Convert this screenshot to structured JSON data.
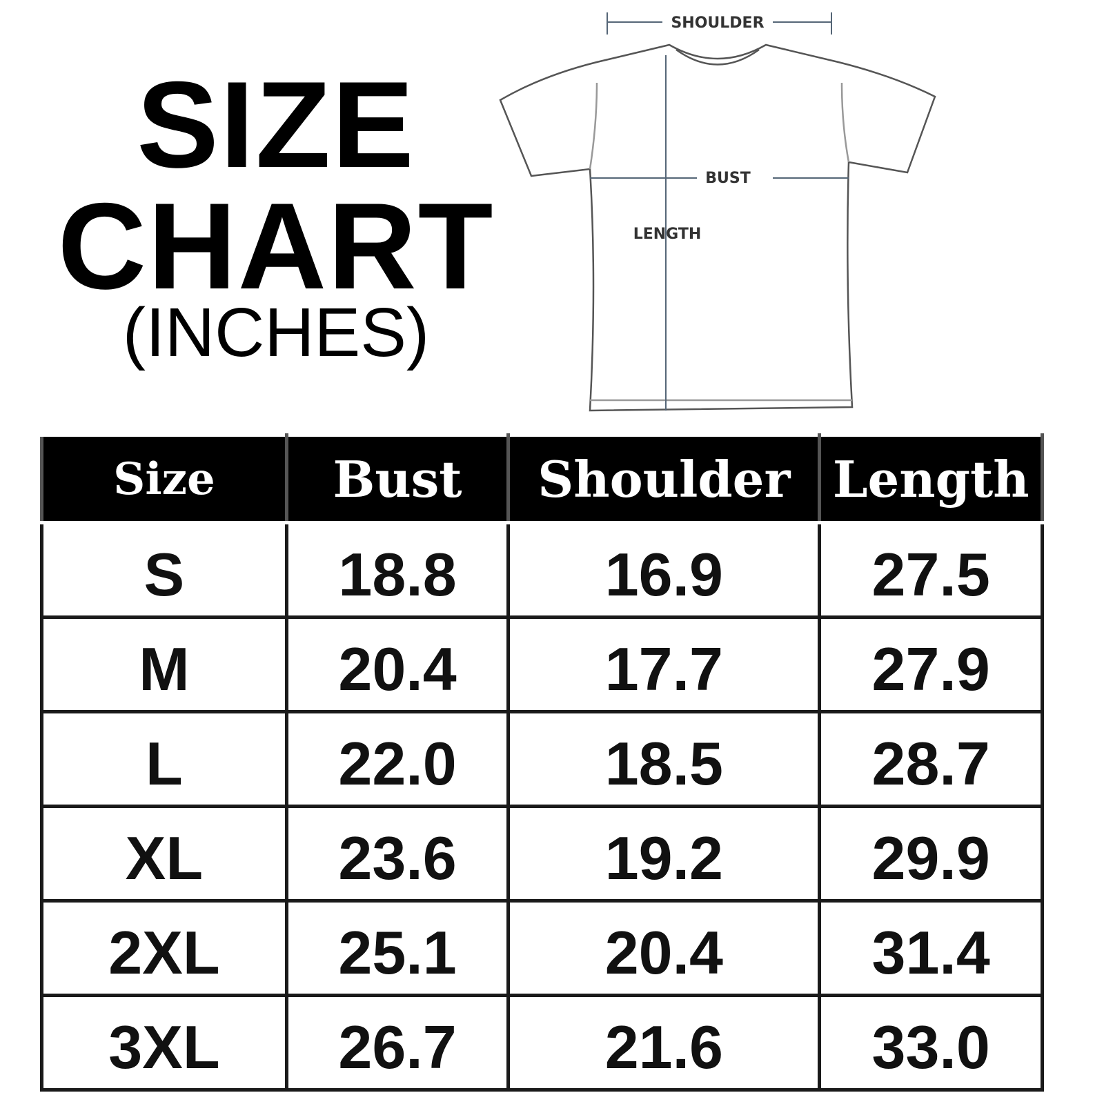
{
  "title": {
    "line1": "SIZE",
    "line2": "CHART",
    "unit": "(INCHES)"
  },
  "diagram": {
    "shoulder": "SHOULDER",
    "bust": "BUST",
    "length": "LENGTH"
  },
  "table": {
    "headers": [
      "Size",
      "Bust",
      "Shoulder",
      "Length"
    ],
    "rows": [
      [
        "S",
        "18.8",
        "16.9",
        "27.5"
      ],
      [
        "M",
        "20.4",
        "17.7",
        "27.9"
      ],
      [
        "L",
        "22.0",
        "18.5",
        "28.7"
      ],
      [
        "XL",
        "23.6",
        "19.2",
        "29.9"
      ],
      [
        "2XL",
        "25.1",
        "20.4",
        "31.4"
      ],
      [
        "3XL",
        "26.7",
        "21.6",
        "33.0"
      ]
    ]
  }
}
